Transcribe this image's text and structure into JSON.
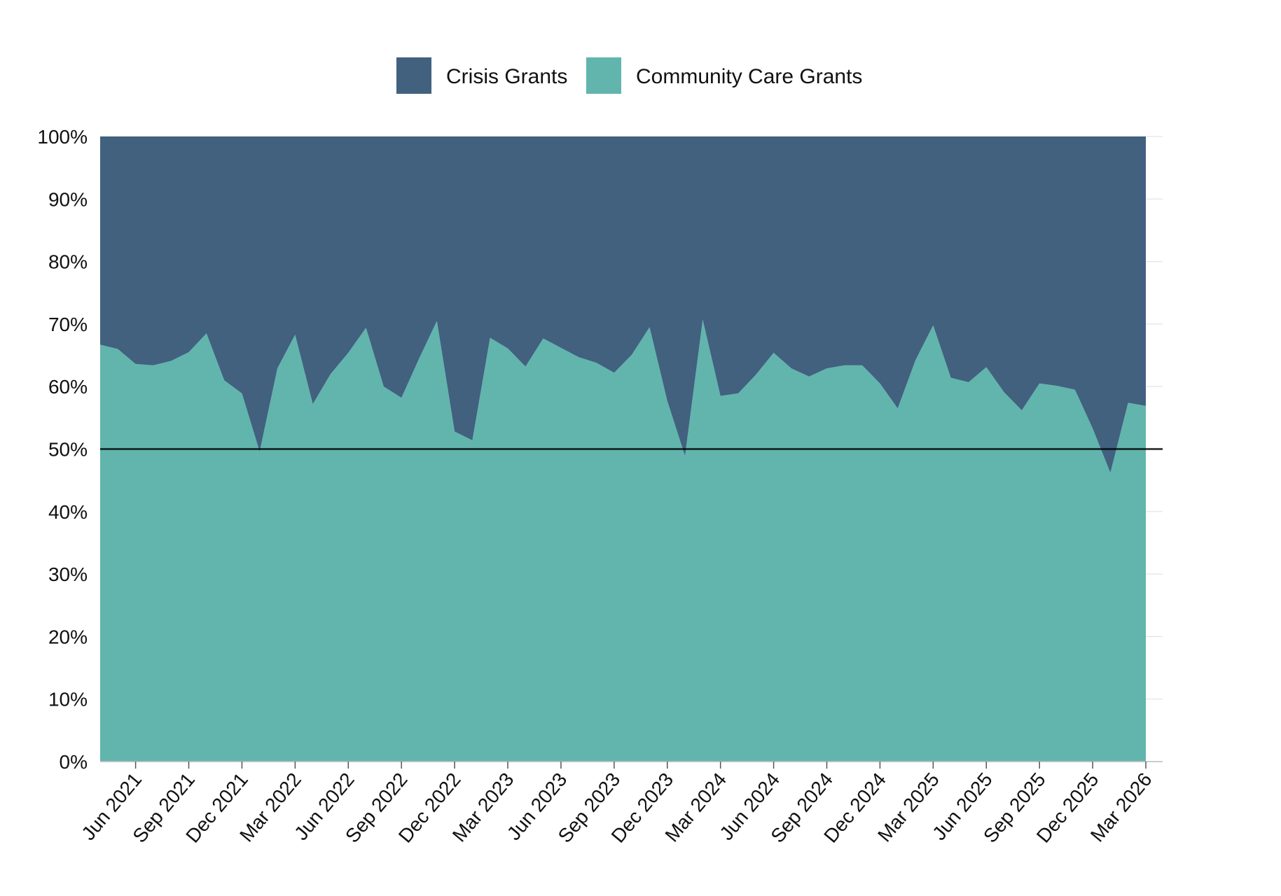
{
  "chart_data": {
    "type": "area",
    "stacked": true,
    "stack_mode": "percent",
    "x_axis_type": "date",
    "x_range": [
      "2021-04",
      "2026-03"
    ],
    "x": [
      "2021-04",
      "2021-05",
      "2021-06",
      "2021-07",
      "2021-08",
      "2021-09",
      "2021-10",
      "2021-11",
      "2021-12",
      "2022-01",
      "2022-02",
      "2022-03",
      "2022-04",
      "2022-05",
      "2022-06",
      "2022-07",
      "2022-08",
      "2022-09",
      "2022-10",
      "2022-11",
      "2022-12",
      "2023-01",
      "2023-02",
      "2023-03",
      "2023-04",
      "2023-05",
      "2023-06",
      "2023-07",
      "2023-08",
      "2023-09",
      "2023-10",
      "2023-11",
      "2023-12",
      "2024-01",
      "2024-02",
      "2024-03",
      "2024-04",
      "2024-05",
      "2024-06",
      "2024-07",
      "2024-08",
      "2024-09",
      "2024-10",
      "2024-11",
      "2024-12",
      "2025-01",
      "2025-02",
      "2025-03",
      "2025-04",
      "2025-05",
      "2025-06",
      "2025-07",
      "2025-08",
      "2025-09",
      "2025-10",
      "2025-11",
      "2025-12",
      "2026-01",
      "2026-02",
      "2026-03"
    ],
    "x_ticks": [
      {
        "date": "2021-06",
        "label": "Jun 2021"
      },
      {
        "date": "2021-09",
        "label": "Sep 2021"
      },
      {
        "date": "2021-12",
        "label": "Dec 2021"
      },
      {
        "date": "2022-03",
        "label": "Mar 2022"
      },
      {
        "date": "2022-06",
        "label": "Jun 2022"
      },
      {
        "date": "2022-09",
        "label": "Sep 2022"
      },
      {
        "date": "2022-12",
        "label": "Dec 2022"
      },
      {
        "date": "2023-03",
        "label": "Mar 2023"
      },
      {
        "date": "2023-06",
        "label": "Jun 2023"
      },
      {
        "date": "2023-09",
        "label": "Sep 2023"
      },
      {
        "date": "2023-12",
        "label": "Dec 2023"
      },
      {
        "date": "2024-03",
        "label": "Mar 2024"
      },
      {
        "date": "2024-06",
        "label": "Jun 2024"
      },
      {
        "date": "2024-09",
        "label": "Sep 2024"
      },
      {
        "date": "2024-12",
        "label": "Dec 2024"
      },
      {
        "date": "2025-03",
        "label": "Mar 2025"
      },
      {
        "date": "2025-06",
        "label": "Jun 2025"
      },
      {
        "date": "2025-09",
        "label": "Sep 2025"
      },
      {
        "date": "2025-12",
        "label": "Dec 2025"
      },
      {
        "date": "2026-03",
        "label": "Mar 2026"
      }
    ],
    "y_ticks": [
      0,
      10,
      20,
      30,
      40,
      50,
      60,
      70,
      80,
      90,
      100
    ],
    "y_tick_labels": [
      "0%",
      "10%",
      "20%",
      "30%",
      "40%",
      "50%",
      "60%",
      "70%",
      "80%",
      "90%",
      "100%"
    ],
    "ylim": [
      0,
      100
    ],
    "reference_line": 50,
    "grid": {
      "horizontal": true,
      "vertical": false
    },
    "legend_position": "top-center",
    "series": [
      {
        "name": "Community Care Grants",
        "color": "#61B5AD",
        "values": [
          66.7,
          66.0,
          63.6,
          63.4,
          64.1,
          65.5,
          68.5,
          61.0,
          58.9,
          49.6,
          62.9,
          68.3,
          57.2,
          62.0,
          65.4,
          69.4,
          60.0,
          58.2,
          64.5,
          70.5,
          52.8,
          51.4,
          67.8,
          66.1,
          63.2,
          67.7,
          66.2,
          64.7,
          63.8,
          62.2,
          65.1,
          69.5,
          57.7,
          48.9,
          70.7,
          58.5,
          58.9,
          61.9,
          65.4,
          62.9,
          61.6,
          62.9,
          63.4,
          63.4,
          60.5,
          56.5,
          64.2,
          69.8,
          61.4,
          60.7,
          63.1,
          59.1,
          56.2,
          60.5,
          60.1,
          59.5,
          53.3,
          46.2,
          57.4,
          56.9
        ]
      },
      {
        "name": "Crisis Grants",
        "color": "#41617F",
        "values": [
          33.3,
          34.0,
          36.4,
          36.6,
          35.9,
          34.5,
          31.5,
          39.0,
          41.1,
          50.4,
          37.1,
          31.7,
          42.8,
          38.0,
          34.6,
          30.6,
          40.0,
          41.8,
          35.5,
          29.5,
          47.2,
          48.6,
          32.2,
          33.9,
          36.8,
          32.3,
          33.8,
          35.3,
          36.2,
          37.8,
          34.9,
          30.5,
          42.3,
          51.1,
          29.3,
          41.5,
          41.1,
          38.1,
          34.6,
          37.1,
          38.4,
          37.1,
          36.6,
          36.6,
          39.5,
          43.5,
          35.8,
          30.2,
          38.6,
          39.3,
          36.9,
          40.9,
          43.8,
          39.5,
          39.9,
          40.5,
          46.7,
          53.8,
          42.6,
          43.1
        ]
      }
    ],
    "legend": [
      {
        "name": "Crisis Grants",
        "color": "#41617F"
      },
      {
        "name": "Community Care Grants",
        "color": "#61B5AD"
      }
    ]
  }
}
